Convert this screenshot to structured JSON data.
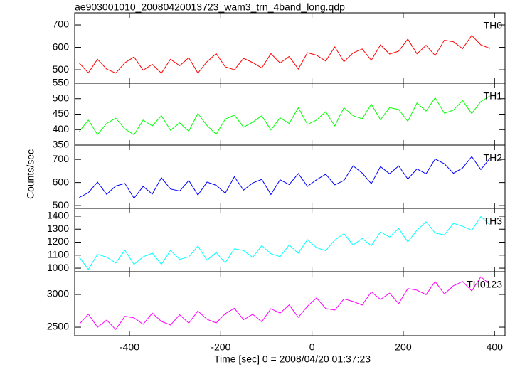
{
  "title": "ae903001010_20080420013723_wam3_trn_4band_long.qdp",
  "xlabel": "Time [sec] 0 = 2008/04/20 01:37:23",
  "ylabel": "Counts/sec",
  "chart_data": [
    {
      "type": "line",
      "x": [
        -510,
        -490,
        -470,
        -450,
        -430,
        -410,
        -390,
        -370,
        -350,
        -330,
        -310,
        -290,
        -270,
        -250,
        -230,
        -210,
        -190,
        -170,
        -150,
        -130,
        -110,
        -90,
        -70,
        -50,
        -30,
        -10,
        10,
        30,
        50,
        70,
        90,
        110,
        130,
        150,
        170,
        190,
        210,
        230,
        250,
        270,
        290,
        310,
        330,
        350,
        370,
        390
      ],
      "series": [
        {
          "name": "TH0",
          "color": "#ff0000",
          "values": [
            530,
            486,
            547,
            503,
            485,
            531,
            557,
            498,
            524,
            485,
            547,
            518,
            554,
            485,
            536,
            572,
            513,
            500,
            551,
            532,
            508,
            572,
            530,
            559,
            503,
            576,
            565,
            539,
            602,
            536,
            575,
            593,
            542,
            611,
            570,
            583,
            637,
            571,
            609,
            563,
            632,
            625,
            594,
            653,
            611,
            595
          ]
        }
      ],
      "xlim": [
        -520,
        423
      ],
      "xticks": [
        -400,
        -200,
        0,
        200,
        400
      ],
      "ylim": [
        440,
        754
      ],
      "yticks": [
        500,
        600,
        700
      ]
    },
    {
      "type": "line",
      "x": [
        -510,
        -490,
        -470,
        -450,
        -430,
        -410,
        -390,
        -370,
        -350,
        -330,
        -310,
        -290,
        -270,
        -250,
        -230,
        -210,
        -190,
        -170,
        -150,
        -130,
        -110,
        -90,
        -70,
        -50,
        -30,
        -10,
        10,
        30,
        50,
        70,
        90,
        110,
        130,
        150,
        170,
        190,
        210,
        230,
        250,
        270,
        290,
        310,
        330,
        350,
        370,
        390
      ],
      "series": [
        {
          "name": "TH1",
          "color": "#00ff00",
          "values": [
            394,
            431,
            384,
            420,
            437,
            402,
            383,
            431,
            412,
            445,
            398,
            422,
            395,
            452,
            413,
            385,
            434,
            447,
            408,
            424,
            445,
            399,
            438,
            420,
            471,
            417,
            431,
            458,
            412,
            471,
            445,
            435,
            482,
            432,
            471,
            465,
            427,
            486,
            460,
            503,
            453,
            463,
            494,
            452,
            491,
            509
          ]
        }
      ],
      "xlim": [
        -520,
        423
      ],
      "xticks": [
        -400,
        -200,
        0,
        200,
        400
      ],
      "ylim": [
        350,
        550
      ],
      "yticks": [
        350,
        400,
        450,
        500,
        550
      ]
    },
    {
      "type": "line",
      "x": [
        -510,
        -490,
        -470,
        -450,
        -430,
        -410,
        -390,
        -370,
        -350,
        -330,
        -310,
        -290,
        -270,
        -250,
        -230,
        -210,
        -190,
        -170,
        -150,
        -130,
        -110,
        -90,
        -70,
        -50,
        -30,
        -10,
        10,
        30,
        50,
        70,
        90,
        110,
        130,
        150,
        170,
        190,
        210,
        230,
        250,
        270,
        290,
        310,
        330,
        350,
        370,
        390
      ],
      "series": [
        {
          "name": "TH2",
          "color": "#0000ff",
          "values": [
            535,
            556,
            602,
            549,
            585,
            596,
            532,
            583,
            550,
            621,
            572,
            563,
            609,
            546,
            602,
            588,
            554,
            625,
            567,
            598,
            614,
            548,
            612,
            591,
            639,
            583,
            612,
            636,
            590,
            609,
            672,
            641,
            595,
            669,
            638,
            672,
            615,
            659,
            638,
            702,
            681,
            640,
            663,
            712,
            656,
            705
          ]
        }
      ],
      "xlim": [
        -520,
        423
      ],
      "xticks": [
        -400,
        -200,
        0,
        200,
        400
      ],
      "ylim": [
        488,
        762
      ],
      "yticks": [
        500,
        600,
        700
      ]
    },
    {
      "type": "line",
      "x": [
        -510,
        -490,
        -470,
        -450,
        -430,
        -410,
        -390,
        -370,
        -350,
        -330,
        -310,
        -290,
        -270,
        -250,
        -230,
        -210,
        -190,
        -170,
        -150,
        -130,
        -110,
        -90,
        -70,
        -50,
        -30,
        -10,
        10,
        30,
        50,
        70,
        90,
        110,
        130,
        150,
        170,
        190,
        210,
        230,
        250,
        270,
        290,
        310,
        330,
        350,
        370,
        390
      ],
      "series": [
        {
          "name": "TH3",
          "color": "#00ffff",
          "values": [
            1084,
            991,
            1106,
            1085,
            1040,
            1139,
            1029,
            1088,
            1115,
            1030,
            1137,
            1068,
            1087,
            1170,
            1061,
            1120,
            1042,
            1149,
            1136,
            1083,
            1174,
            1111,
            1089,
            1178,
            1115,
            1220,
            1158,
            1135,
            1216,
            1266,
            1179,
            1228,
            1173,
            1279,
            1240,
            1305,
            1203,
            1292,
            1357,
            1270,
            1256,
            1345,
            1322,
            1291,
            1397,
            1334
          ]
        }
      ],
      "xlim": [
        -520,
        423
      ],
      "xticks": [
        -400,
        -200,
        0,
        200,
        400
      ],
      "ylim": [
        973,
        1460
      ],
      "yticks": [
        1000,
        1100,
        1200,
        1300,
        1400
      ]
    },
    {
      "type": "line",
      "x": [
        -510,
        -490,
        -470,
        -450,
        -430,
        -410,
        -390,
        -370,
        -350,
        -330,
        -310,
        -290,
        -270,
        -250,
        -230,
        -210,
        -190,
        -170,
        -150,
        -130,
        -110,
        -90,
        -70,
        -50,
        -30,
        -10,
        10,
        30,
        50,
        70,
        90,
        110,
        130,
        150,
        170,
        190,
        210,
        230,
        250,
        270,
        290,
        310,
        330,
        350,
        370,
        390
      ],
      "series": [
        {
          "name": "TH0123",
          "color": "#ff00ff",
          "values": [
            2545,
            2701,
            2498,
            2609,
            2466,
            2667,
            2643,
            2545,
            2716,
            2588,
            2534,
            2690,
            2562,
            2748,
            2620,
            2566,
            2707,
            2789,
            2615,
            2697,
            2583,
            2783,
            2714,
            2839,
            2650,
            2820,
            2946,
            2786,
            2762,
            2932,
            2893,
            2838,
            3039,
            2924,
            3020,
            2860,
            3091,
            3066,
            2997,
            3197,
            3008,
            3133,
            3199,
            3054,
            3270,
            3155
          ]
        }
      ],
      "xlim": [
        -520,
        423
      ],
      "xticks": [
        -400,
        -200,
        0,
        200,
        400
      ],
      "ylim": [
        2370,
        3348
      ],
      "yticks": [
        2500,
        3000
      ]
    }
  ]
}
